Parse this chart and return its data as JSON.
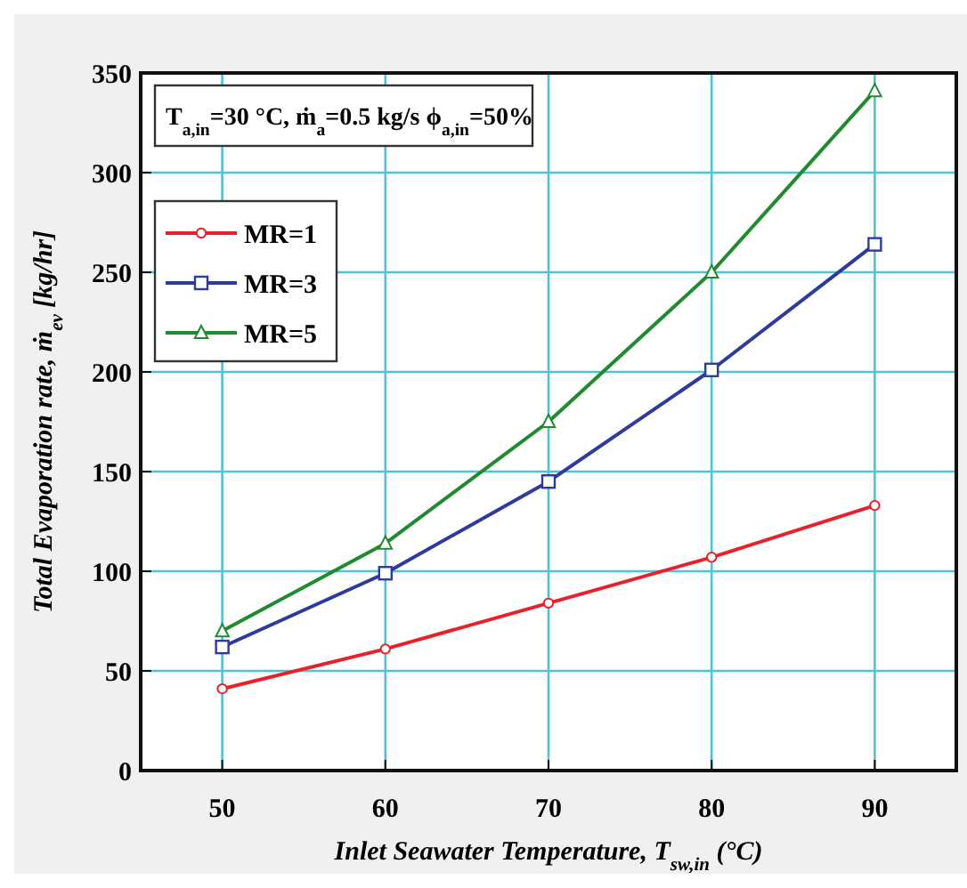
{
  "chart_data": {
    "type": "line",
    "xlabel": "Inlet Seawater Temperature, T$_{sw,in}$ (°C)",
    "ylabel": "Total Evaporation rate, ṁ$_{ev}$  [kg/hr]",
    "annotations": [
      "T$_{a,in}$=30 °C, ṁ$_{a}$=0.5 kg/s ϕ$_{a,in}$=50%"
    ],
    "x": [
      50,
      60,
      70,
      80,
      90
    ],
    "series": [
      {
        "name": "MR=1",
        "color": "#e8202a",
        "marker": "circle",
        "values": [
          41,
          61,
          84,
          107,
          133
        ]
      },
      {
        "name": "MR=3",
        "color": "#2e3a9e",
        "marker": "square",
        "values": [
          62,
          99,
          145,
          201,
          264
        ]
      },
      {
        "name": "MR=5",
        "color": "#1f8a2e",
        "marker": "triangle",
        "values": [
          70,
          114,
          175,
          250,
          341
        ]
      }
    ],
    "xlim": [
      45,
      95
    ],
    "xticks": [
      50,
      60,
      70,
      80,
      90
    ],
    "ylim": [
      0,
      350
    ],
    "yticks": [
      0,
      50,
      100,
      150,
      200,
      250,
      300,
      350
    ],
    "grid": true,
    "legend": "top left",
    "line_style": "solid"
  }
}
